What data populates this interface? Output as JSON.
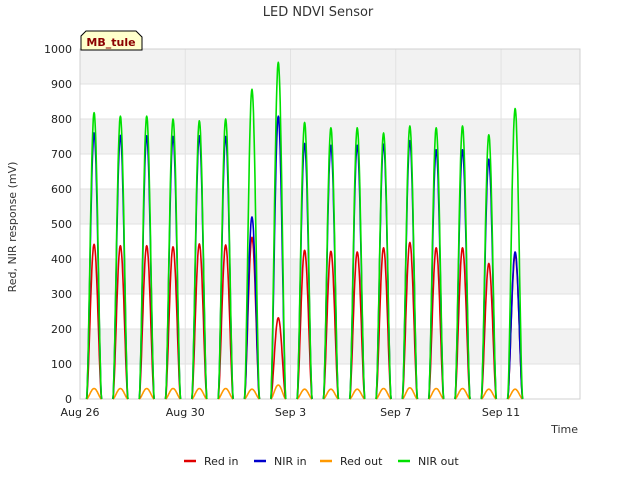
{
  "chart_data": {
    "type": "line",
    "title": "LED NDVI Sensor",
    "xlabel": "Time",
    "ylabel": "Red, NIR response (mV)",
    "badge": "MB_tule",
    "ylim": [
      0,
      1000
    ],
    "yticks": [
      0,
      100,
      200,
      300,
      400,
      500,
      600,
      700,
      800,
      900,
      1000
    ],
    "xlim": [
      "2023-08-26",
      "2023-09-14"
    ],
    "xticks": [
      {
        "date": "2023-08-26",
        "label": "Aug 26"
      },
      {
        "date": "2023-08-30",
        "label": "Aug 30"
      },
      {
        "date": "2023-09-03",
        "label": "Sep 3"
      },
      {
        "date": "2023-09-07",
        "label": "Sep 7"
      },
      {
        "date": "2023-09-11",
        "label": "Sep 11"
      }
    ],
    "grid": true,
    "legend_position": "bottom",
    "daily_peaks": {
      "days": [
        "2023-08-26",
        "2023-08-27",
        "2023-08-28",
        "2023-08-29",
        "2023-08-30",
        "2023-08-31",
        "2023-09-01",
        "2023-09-02",
        "2023-09-03",
        "2023-09-04",
        "2023-09-05",
        "2023-09-06",
        "2023-09-07",
        "2023-09-08",
        "2023-09-09",
        "2023-09-10",
        "2023-09-11",
        "2023-09-12"
      ],
      "series": [
        {
          "name": "Red in",
          "color": "#e00000",
          "values": [
            442,
            438,
            438,
            435,
            443,
            440,
            462,
            232,
            425,
            422,
            420,
            432,
            447,
            432,
            432,
            387,
            412,
            0
          ]
        },
        {
          "name": "NIR in",
          "color": "#0000cc",
          "values": [
            760,
            753,
            752,
            750,
            752,
            750,
            520,
            808,
            730,
            725,
            725,
            728,
            738,
            712,
            712,
            685,
            420,
            0
          ]
        },
        {
          "name": "Red out",
          "color": "#ff9900",
          "values": [
            30,
            30,
            30,
            30,
            30,
            30,
            28,
            40,
            28,
            28,
            28,
            30,
            32,
            30,
            30,
            28,
            28,
            0
          ]
        },
        {
          "name": "NIR out",
          "color": "#00e000",
          "values": [
            818,
            808,
            808,
            800,
            795,
            800,
            885,
            962,
            790,
            775,
            775,
            760,
            780,
            775,
            780,
            755,
            830,
            0
          ]
        }
      ]
    }
  }
}
